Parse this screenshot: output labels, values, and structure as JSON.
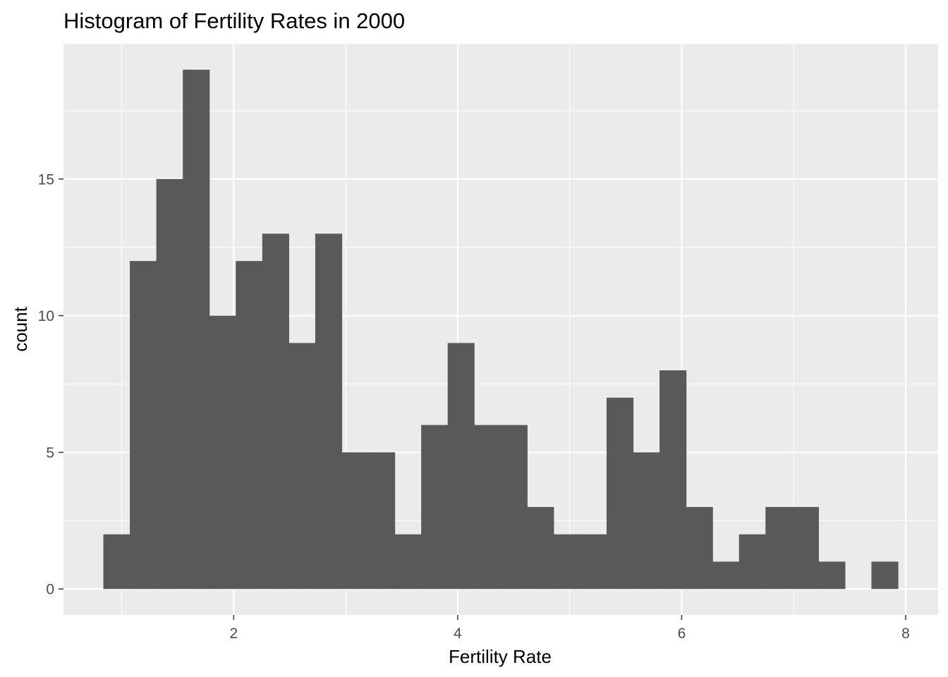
{
  "chart_data": {
    "type": "bar",
    "title": "Histogram of Fertility Rates in 2000",
    "xlabel": "Fertility Rate",
    "ylabel": "count",
    "bin_width": 0.2365,
    "bins": [
      {
        "x0": 0.836,
        "x1": 1.0725,
        "count": 2
      },
      {
        "x0": 1.0725,
        "x1": 1.309,
        "count": 12
      },
      {
        "x0": 1.309,
        "x1": 1.5455,
        "count": 15
      },
      {
        "x0": 1.5455,
        "x1": 1.782,
        "count": 19
      },
      {
        "x0": 1.782,
        "x1": 2.0185,
        "count": 10
      },
      {
        "x0": 2.0185,
        "x1": 2.255,
        "count": 12
      },
      {
        "x0": 2.255,
        "x1": 2.4915,
        "count": 13
      },
      {
        "x0": 2.4915,
        "x1": 2.728,
        "count": 9
      },
      {
        "x0": 2.728,
        "x1": 2.9645,
        "count": 13
      },
      {
        "x0": 2.9645,
        "x1": 3.201,
        "count": 5
      },
      {
        "x0": 3.201,
        "x1": 3.4375,
        "count": 5
      },
      {
        "x0": 3.4375,
        "x1": 3.674,
        "count": 2
      },
      {
        "x0": 3.674,
        "x1": 3.9105,
        "count": 6
      },
      {
        "x0": 3.9105,
        "x1": 4.147,
        "count": 9
      },
      {
        "x0": 4.147,
        "x1": 4.3835,
        "count": 6
      },
      {
        "x0": 4.3835,
        "x1": 4.62,
        "count": 6
      },
      {
        "x0": 4.62,
        "x1": 4.8565,
        "count": 3
      },
      {
        "x0": 4.8565,
        "x1": 5.093,
        "count": 2
      },
      {
        "x0": 5.093,
        "x1": 5.3295,
        "count": 2
      },
      {
        "x0": 5.3295,
        "x1": 5.566,
        "count": 7
      },
      {
        "x0": 5.566,
        "x1": 5.8025,
        "count": 5
      },
      {
        "x0": 5.8025,
        "x1": 6.039,
        "count": 8
      },
      {
        "x0": 6.039,
        "x1": 6.2755,
        "count": 3
      },
      {
        "x0": 6.2755,
        "x1": 6.512,
        "count": 1
      },
      {
        "x0": 6.512,
        "x1": 6.7485,
        "count": 2
      },
      {
        "x0": 6.7485,
        "x1": 6.985,
        "count": 3
      },
      {
        "x0": 6.985,
        "x1": 7.2215,
        "count": 3
      },
      {
        "x0": 7.2215,
        "x1": 7.458,
        "count": 1
      },
      {
        "x0": 7.458,
        "x1": 7.6945,
        "count": 0
      },
      {
        "x0": 7.6945,
        "x1": 7.931,
        "count": 1
      }
    ],
    "xlim": [
      0.48,
      8.29
    ],
    "ylim": [
      -0.95,
      19.95
    ],
    "x_ticks": [
      2,
      4,
      6,
      8
    ],
    "x_tick_labels": [
      "2",
      "4",
      "6",
      "8"
    ],
    "x_minor_ticks": [
      1,
      3,
      5,
      7
    ],
    "y_ticks": [
      0,
      5,
      10,
      15
    ],
    "y_tick_labels": [
      "0",
      "5",
      "10",
      "15"
    ],
    "y_minor_ticks": [
      2.5,
      7.5,
      12.5,
      17.5
    ],
    "grid": true,
    "legend": "none",
    "colors": {
      "bar_fill": "#595959",
      "panel_background": "#ebebeb",
      "grid_line": "#ffffff",
      "tick_label": "#4d4d4d",
      "tick_mark": "#333333",
      "text": "#000000"
    }
  }
}
